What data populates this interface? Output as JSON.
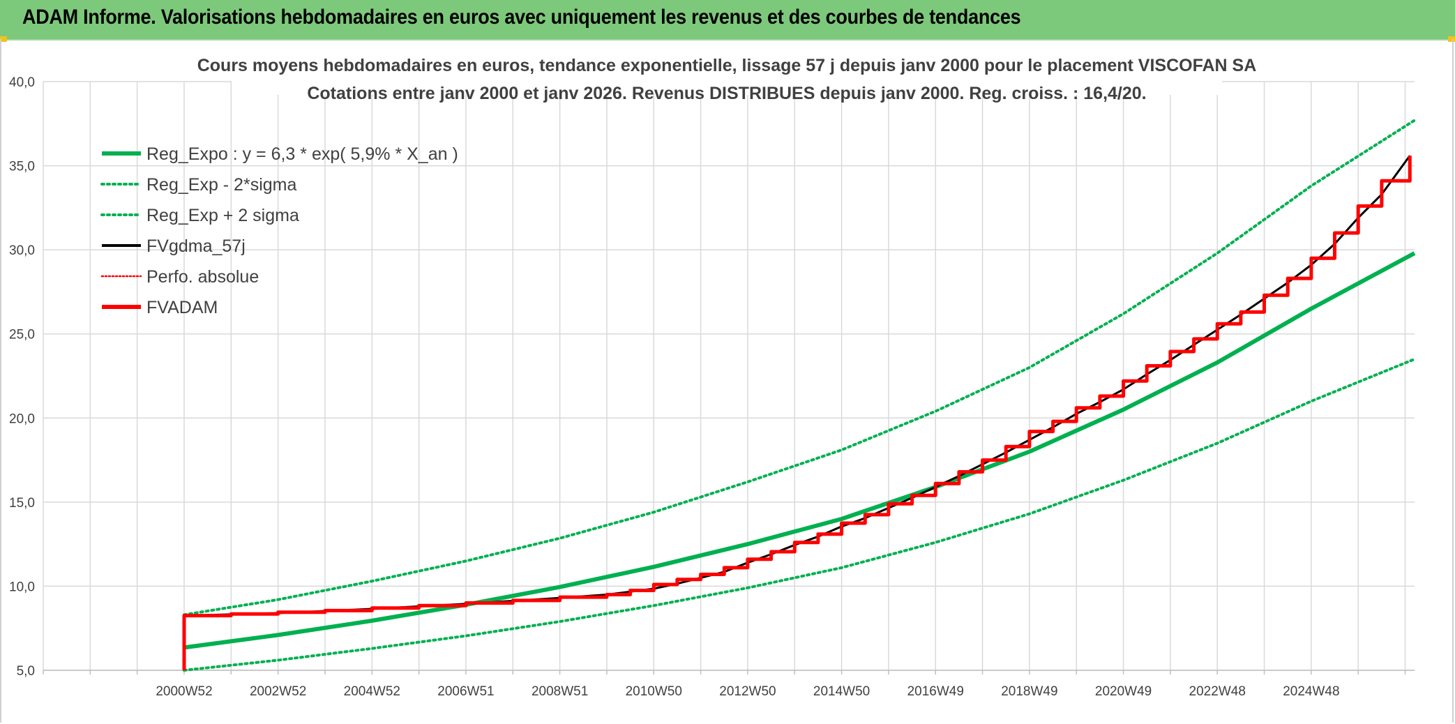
{
  "banner": {
    "title": "ADAM Informe. Valorisations hebdomadaires en euros avec uniquement les revenus et des courbes de tendances"
  },
  "colors": {
    "banner_bg": "#7dc97b",
    "trend_green": "#00b050",
    "black_line": "#000000",
    "red_line": "#ff0000",
    "grid": "#d9d9d9",
    "text": "#404040"
  },
  "chart_data": {
    "type": "line",
    "title_lines": [
      "Cours moyens hebdomadaires en euros, tendance exponentielle, lissage 57 j depuis janv 2000 pour le placement VISCOFAN SA",
      "Cotations entre janv 2000 et janv 2026. Revenus DISTRIBUES depuis janv 2000. Reg. croiss. : 16,4/20."
    ],
    "xlabel": "",
    "ylabel": "",
    "ylim": [
      5,
      40
    ],
    "y_ticks": [
      "5,0",
      "10,0",
      "15,0",
      "20,0",
      "25,0",
      "30,0",
      "35,0",
      "40,0"
    ],
    "y_tick_values": [
      5,
      10,
      15,
      20,
      25,
      30,
      35,
      40
    ],
    "x_range": [
      1997.0,
      2026.2
    ],
    "x_tick_labels": [
      "2000W52",
      "2002W52",
      "2004W52",
      "2006W51",
      "2008W51",
      "2010W50",
      "2012W50",
      "2014W50",
      "2016W49",
      "2018W49",
      "2020W49",
      "2022W48",
      "2024W48"
    ],
    "x_tick_years": [
      2000.0,
      2002.0,
      2004.0,
      2006.0,
      2008.0,
      2010.0,
      2012.0,
      2014.0,
      2016.0,
      2018.0,
      2020.0,
      2022.0,
      2024.0
    ],
    "grid": true,
    "legend_position": "top-left",
    "legend": [
      {
        "label": "Reg_Expo : y = 6,3 * exp( 5,9% *  X_an )",
        "color": "#00b050",
        "style": "solid-thick"
      },
      {
        "label": "Reg_Exp - 2*sigma",
        "color": "#00b050",
        "style": "dotted"
      },
      {
        "label": "Reg_Exp + 2 sigma",
        "color": "#00b050",
        "style": "dotted"
      },
      {
        "label": "FVgdma_57j",
        "color": "#000000",
        "style": "solid"
      },
      {
        "label": "Perfo. absolue",
        "color": "#ff0000",
        "style": "dotted"
      },
      {
        "label": "FVADAM",
        "color": "#ff0000",
        "style": "solid-thick"
      }
    ],
    "series": [
      {
        "name": "Reg_Expo : y = 6,3 * exp( 5,9% *  X_an )",
        "x": [
          2000.0,
          2002.0,
          2004.0,
          2006.0,
          2008.0,
          2010.0,
          2012.0,
          2014.0,
          2016.0,
          2018.0,
          2020.0,
          2022.0,
          2024.0,
          2026.2
        ],
        "y": [
          6.35,
          7.1,
          7.95,
          8.9,
          9.95,
          11.15,
          12.5,
          14.0,
          15.9,
          18.0,
          20.5,
          23.3,
          26.5,
          29.8
        ]
      },
      {
        "name": "Reg_Exp - 2*sigma",
        "x": [
          2000.0,
          2002.0,
          2004.0,
          2006.0,
          2008.0,
          2010.0,
          2012.0,
          2014.0,
          2016.0,
          2018.0,
          2020.0,
          2022.0,
          2024.0,
          2026.2
        ],
        "y": [
          5.0,
          5.6,
          6.3,
          7.05,
          7.9,
          8.85,
          9.9,
          11.1,
          12.6,
          14.3,
          16.3,
          18.5,
          21.0,
          23.5
        ]
      },
      {
        "name": "Reg_Exp + 2 sigma",
        "x": [
          2000.0,
          2002.0,
          2004.0,
          2006.0,
          2008.0,
          2010.0,
          2012.0,
          2014.0,
          2016.0,
          2018.0,
          2020.0,
          2022.0,
          2024.0,
          2026.2
        ],
        "y": [
          8.3,
          9.2,
          10.3,
          11.5,
          12.85,
          14.4,
          16.2,
          18.1,
          20.4,
          23.0,
          26.2,
          29.8,
          33.8,
          37.7
        ]
      },
      {
        "name": "FVgdma_57j",
        "x": [
          2000.0,
          2002.0,
          2004.0,
          2005.0,
          2006.0,
          2008.0,
          2009.0,
          2010.0,
          2010.5,
          2011.0,
          2011.5,
          2012.0,
          2012.5,
          2013.0,
          2013.5,
          2014.0,
          2014.5,
          2015.0,
          2015.5,
          2016.0,
          2016.5,
          2017.0,
          2017.5,
          2018.0,
          2018.5,
          2019.0,
          2019.5,
          2020.0,
          2020.5,
          2021.0,
          2021.5,
          2022.0,
          2022.5,
          2023.0,
          2023.5,
          2024.0,
          2024.5,
          2025.0,
          2025.5,
          2026.1
        ],
        "y": [
          8.25,
          8.4,
          8.65,
          8.8,
          8.95,
          9.3,
          9.5,
          9.85,
          10.15,
          10.5,
          10.85,
          11.4,
          11.9,
          12.45,
          12.95,
          13.55,
          14.05,
          14.65,
          15.25,
          15.9,
          16.55,
          17.25,
          17.95,
          18.7,
          19.45,
          20.25,
          20.95,
          21.7,
          22.6,
          23.45,
          24.35,
          25.25,
          26.15,
          27.1,
          28.05,
          29.1,
          30.35,
          31.9,
          33.3,
          35.6
        ]
      },
      {
        "name": "FVADAM",
        "x": [
          2000.0,
          2000.0,
          2001.0,
          2002.0,
          2003.0,
          2004.0,
          2005.0,
          2006.0,
          2007.0,
          2008.0,
          2009.0,
          2009.5,
          2010.0,
          2010.5,
          2011.0,
          2011.5,
          2012.0,
          2012.5,
          2013.0,
          2013.5,
          2014.0,
          2014.5,
          2015.0,
          2015.5,
          2016.0,
          2016.5,
          2017.0,
          2017.5,
          2018.0,
          2018.5,
          2019.0,
          2019.5,
          2020.0,
          2020.5,
          2021.0,
          2021.5,
          2022.0,
          2022.5,
          2023.0,
          2023.5,
          2024.0,
          2024.5,
          2025.0,
          2025.5,
          2026.1
        ],
        "y": [
          5.0,
          8.25,
          8.35,
          8.45,
          8.55,
          8.7,
          8.85,
          9.0,
          9.15,
          9.35,
          9.5,
          9.75,
          10.1,
          10.4,
          10.7,
          11.1,
          11.6,
          12.05,
          12.6,
          13.1,
          13.75,
          14.25,
          14.9,
          15.4,
          16.1,
          16.8,
          17.5,
          18.3,
          19.2,
          19.8,
          20.6,
          21.3,
          22.2,
          23.1,
          23.95,
          24.7,
          25.6,
          26.3,
          27.3,
          28.3,
          29.5,
          31.0,
          32.6,
          34.1,
          35.6
        ]
      }
    ]
  }
}
